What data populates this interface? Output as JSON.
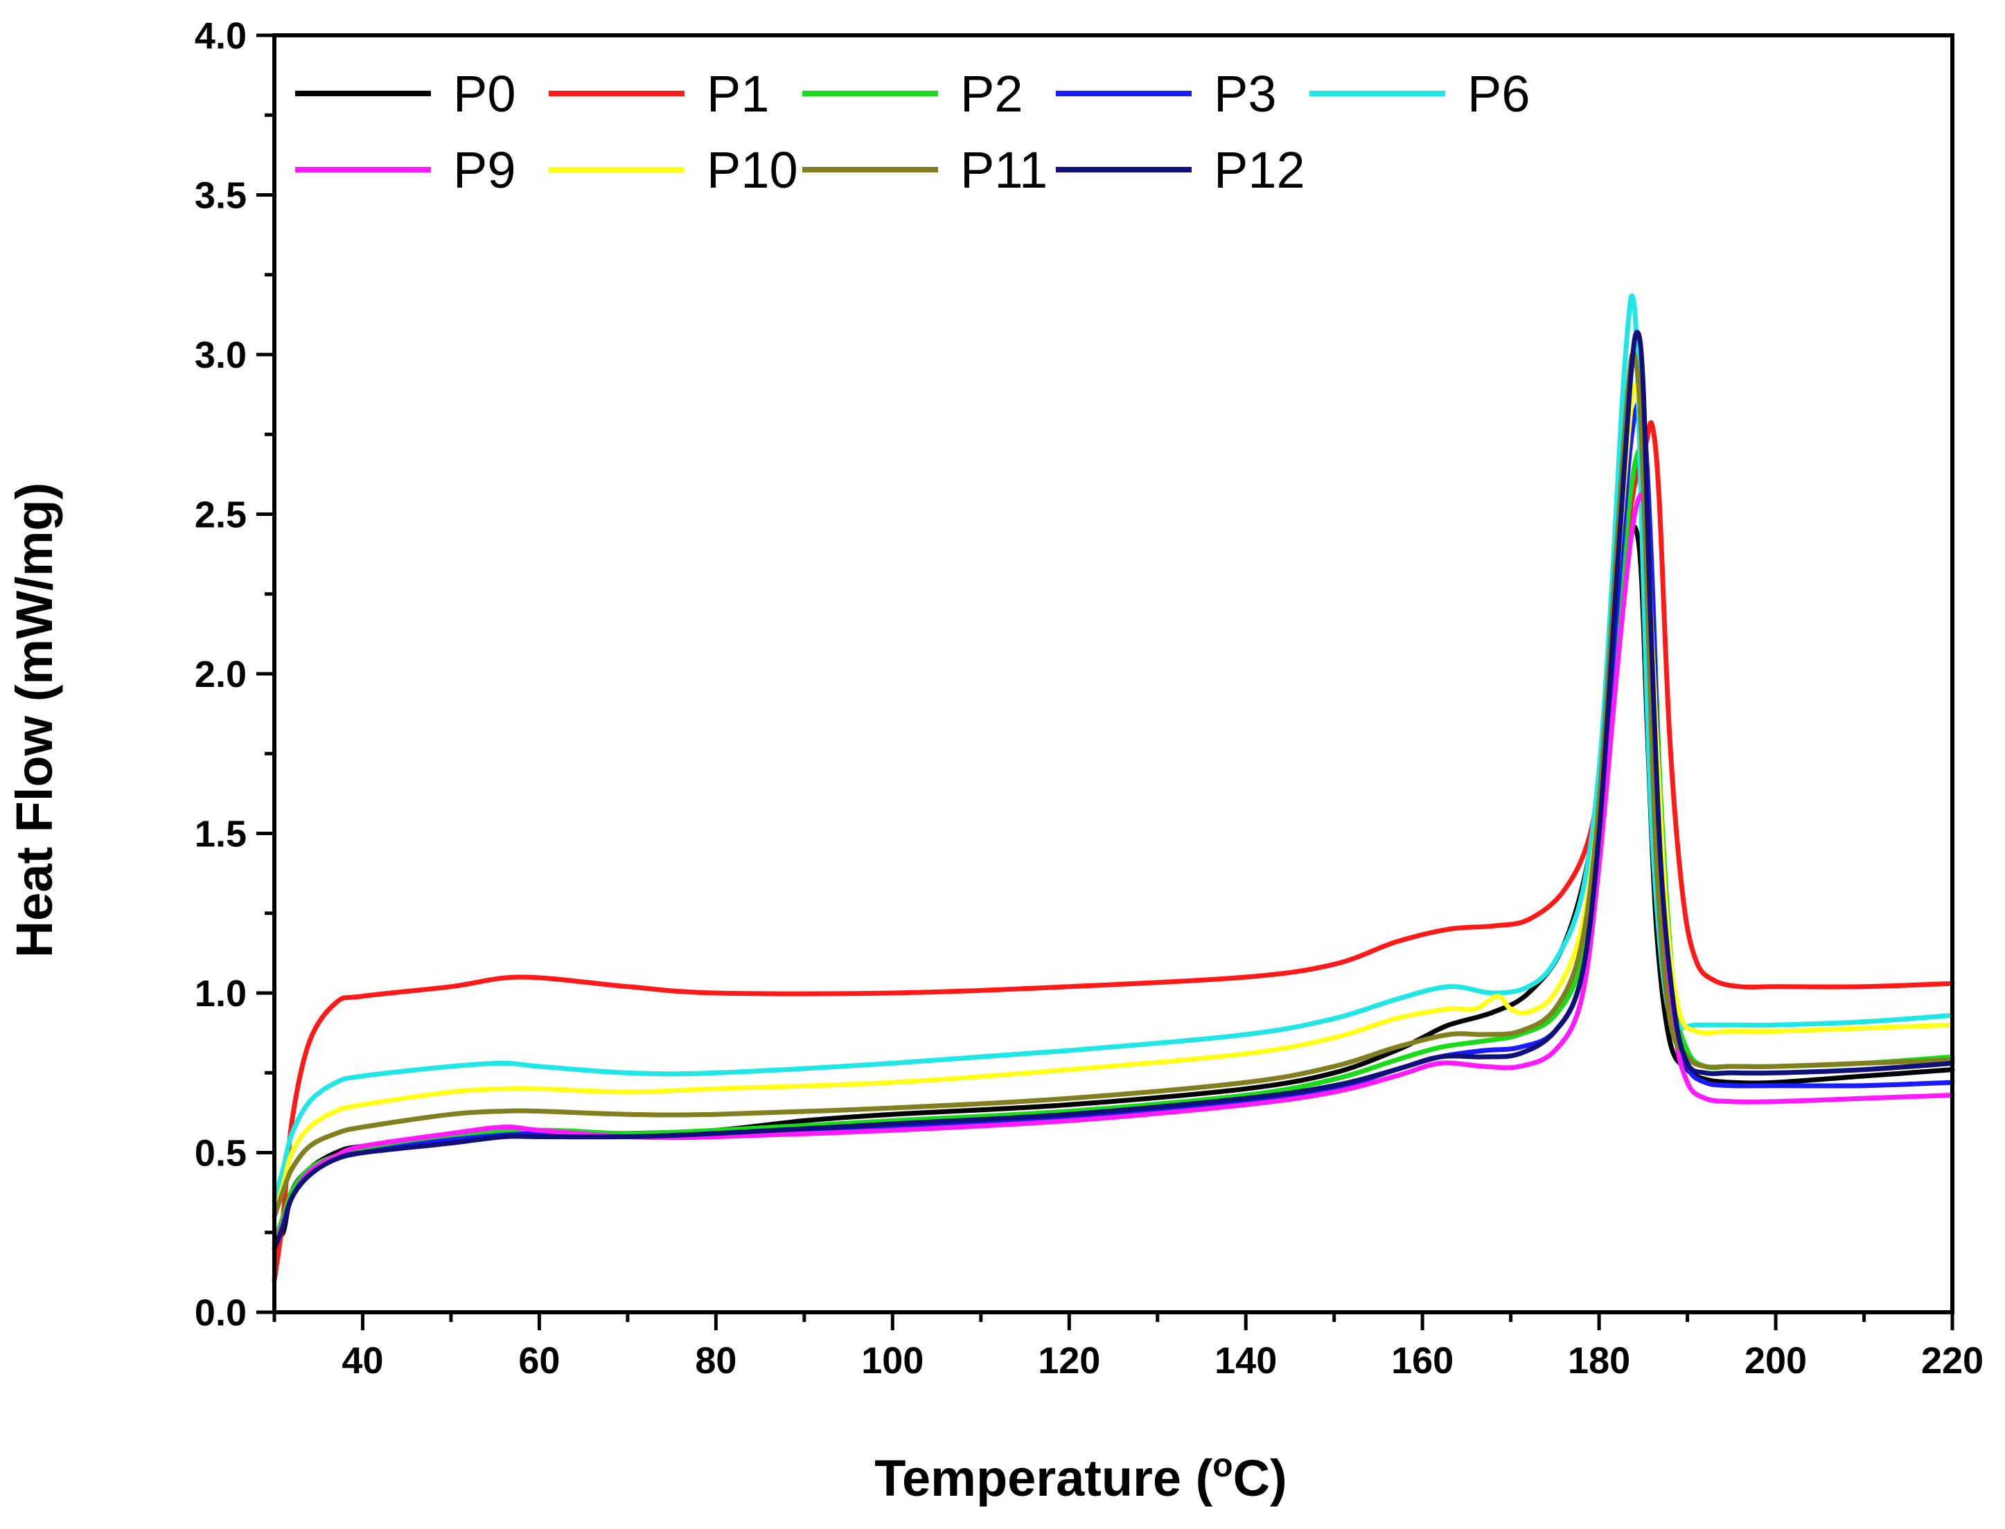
{
  "chart_data": {
    "type": "line",
    "title": "",
    "xlabel": "Temperature (",
    "xlabel_sup": "o",
    "xlabel_end": "C)",
    "ylabel": "Heat Flow (mW/mg)",
    "xlim": [
      30,
      220
    ],
    "ylim": [
      0,
      4
    ],
    "x_ticks": [
      40,
      60,
      80,
      100,
      120,
      140,
      160,
      180,
      200,
      220
    ],
    "x_tick_labels": [
      "40",
      "60",
      "80",
      "100",
      "120",
      "140",
      "160",
      "180",
      "200",
      "220"
    ],
    "y_ticks": [
      0,
      0.5,
      1,
      1.5,
      2,
      2.5,
      3,
      3.5,
      4
    ],
    "y_tick_labels": [
      "0.0",
      "0.5",
      "1.0",
      "1.5",
      "2.0",
      "2.5",
      "3.0",
      "3.5",
      "4.0"
    ],
    "grid": false,
    "legend_position": "top-left",
    "series": [
      {
        "name": "P0",
        "color": "#000000",
        "x": [
          30,
          31,
          32,
          34,
          37,
          40,
          50,
          60,
          70,
          80,
          90,
          100,
          120,
          140,
          150,
          157,
          160,
          163,
          168,
          172,
          176,
          179,
          181,
          182.5,
          183.5,
          184.2,
          184.8,
          185.5,
          186.5,
          188,
          190,
          192,
          195,
          200,
          210,
          220
        ],
        "y": [
          0.25,
          0.25,
          0.38,
          0.45,
          0.5,
          0.52,
          0.54,
          0.56,
          0.56,
          0.57,
          0.6,
          0.62,
          0.65,
          0.7,
          0.75,
          0.82,
          0.86,
          0.9,
          0.94,
          1.0,
          1.15,
          1.45,
          1.9,
          2.3,
          2.43,
          2.45,
          2.3,
          1.8,
          1.2,
          0.85,
          0.76,
          0.73,
          0.72,
          0.72,
          0.74,
          0.76
        ]
      },
      {
        "name": "P1",
        "color": "#ff1a1a",
        "x": [
          30,
          31,
          32,
          34,
          37,
          40,
          50,
          58,
          70,
          80,
          100,
          120,
          140,
          150,
          157,
          163,
          168,
          172,
          176,
          179,
          181,
          182.5,
          183.5,
          184.5,
          185.3,
          186,
          186.8,
          188,
          189.5,
          191,
          193,
          196,
          200,
          210,
          220
        ],
        "y": [
          0.1,
          0.3,
          0.6,
          0.85,
          0.97,
          0.99,
          1.02,
          1.05,
          1.02,
          1.0,
          1.0,
          1.02,
          1.05,
          1.09,
          1.16,
          1.2,
          1.21,
          1.23,
          1.32,
          1.5,
          1.85,
          2.2,
          2.5,
          2.65,
          2.72,
          2.78,
          2.55,
          1.8,
          1.3,
          1.1,
          1.04,
          1.02,
          1.02,
          1.02,
          1.03
        ]
      },
      {
        "name": "P2",
        "color": "#1adb1a",
        "x": [
          30,
          31,
          32,
          34,
          37,
          40,
          50,
          60,
          70,
          80,
          100,
          120,
          140,
          150,
          157,
          162,
          167,
          171,
          175,
          178,
          180,
          182,
          183.5,
          184.5,
          185.2,
          186,
          187,
          188.5,
          190,
          192,
          195,
          200,
          210,
          220
        ],
        "y": [
          0.22,
          0.3,
          0.38,
          0.45,
          0.49,
          0.51,
          0.55,
          0.57,
          0.56,
          0.57,
          0.6,
          0.63,
          0.68,
          0.73,
          0.79,
          0.83,
          0.85,
          0.87,
          0.93,
          1.1,
          1.5,
          2.1,
          2.55,
          2.7,
          2.65,
          2.3,
          1.6,
          1.0,
          0.82,
          0.77,
          0.77,
          0.77,
          0.78,
          0.8
        ]
      },
      {
        "name": "P3",
        "color": "#1a1aff",
        "x": [
          30,
          31,
          32,
          34,
          37,
          40,
          50,
          60,
          70,
          80,
          100,
          120,
          140,
          150,
          157,
          162,
          167,
          171,
          175,
          178,
          180,
          182,
          183.5,
          184.5,
          185.2,
          186,
          187,
          188.5,
          190,
          192,
          195,
          200,
          210,
          220
        ],
        "y": [
          0.2,
          0.28,
          0.36,
          0.44,
          0.48,
          0.5,
          0.54,
          0.56,
          0.55,
          0.55,
          0.58,
          0.61,
          0.66,
          0.7,
          0.76,
          0.8,
          0.82,
          0.83,
          0.88,
          1.05,
          1.5,
          2.2,
          2.7,
          2.85,
          2.75,
          2.3,
          1.5,
          0.95,
          0.77,
          0.72,
          0.71,
          0.71,
          0.71,
          0.72
        ]
      },
      {
        "name": "P6",
        "color": "#20e6e6",
        "x": [
          30,
          31,
          32,
          34,
          37,
          40,
          50,
          56,
          60,
          70,
          80,
          100,
          120,
          140,
          150,
          157,
          163,
          168,
          172,
          175,
          178,
          180,
          181.5,
          182.5,
          183.3,
          183.8,
          184.3,
          185,
          186,
          187.5,
          189,
          191,
          195,
          200,
          210,
          220
        ],
        "y": [
          0.35,
          0.45,
          0.56,
          0.66,
          0.72,
          0.74,
          0.77,
          0.78,
          0.77,
          0.75,
          0.75,
          0.78,
          0.82,
          0.87,
          0.92,
          0.98,
          1.02,
          1.0,
          1.02,
          1.1,
          1.3,
          1.7,
          2.3,
          2.8,
          3.1,
          3.18,
          3.0,
          2.3,
          1.5,
          1.0,
          0.9,
          0.9,
          0.9,
          0.9,
          0.91,
          0.93
        ]
      },
      {
        "name": "P9",
        "color": "#ff1aff",
        "x": [
          30,
          31,
          32,
          34,
          37,
          40,
          50,
          56,
          60,
          70,
          80,
          100,
          120,
          140,
          150,
          157,
          162,
          167,
          171,
          175,
          178,
          180,
          182,
          183.5,
          184.5,
          185.2,
          186,
          187,
          188.5,
          190,
          192,
          195,
          200,
          210,
          220
        ],
        "y": [
          0.2,
          0.28,
          0.36,
          0.44,
          0.49,
          0.52,
          0.56,
          0.58,
          0.57,
          0.55,
          0.55,
          0.57,
          0.6,
          0.65,
          0.69,
          0.74,
          0.78,
          0.77,
          0.77,
          0.82,
          0.98,
          1.4,
          2.0,
          2.4,
          2.55,
          2.5,
          2.1,
          1.4,
          0.9,
          0.72,
          0.67,
          0.66,
          0.66,
          0.67,
          0.68
        ]
      },
      {
        "name": "P10",
        "color": "#ffff1a",
        "x": [
          30,
          31,
          32,
          34,
          37,
          40,
          50,
          56,
          60,
          70,
          80,
          100,
          120,
          140,
          150,
          157,
          163,
          166,
          168.5,
          170,
          172,
          175,
          178,
          180,
          182,
          183.5,
          184.2,
          185,
          186,
          187.5,
          189,
          191,
          195,
          200,
          210,
          220
        ],
        "y": [
          0.3,
          0.4,
          0.5,
          0.58,
          0.63,
          0.65,
          0.69,
          0.7,
          0.7,
          0.69,
          0.7,
          0.72,
          0.76,
          0.81,
          0.86,
          0.92,
          0.95,
          0.95,
          0.99,
          0.95,
          0.94,
          1.0,
          1.2,
          1.6,
          2.3,
          2.8,
          2.9,
          2.7,
          2.1,
          1.3,
          0.95,
          0.88,
          0.88,
          0.88,
          0.89,
          0.9
        ]
      },
      {
        "name": "P11",
        "color": "#808020",
        "x": [
          30,
          31,
          32,
          34,
          37,
          40,
          50,
          56,
          60,
          70,
          80,
          100,
          120,
          140,
          150,
          157,
          163,
          167,
          171,
          175,
          178,
          180,
          182,
          183.3,
          184,
          184.7,
          185.5,
          186.5,
          188,
          190,
          192,
          195,
          200,
          210,
          220
        ],
        "y": [
          0.3,
          0.38,
          0.45,
          0.52,
          0.56,
          0.58,
          0.62,
          0.63,
          0.63,
          0.62,
          0.62,
          0.64,
          0.67,
          0.72,
          0.77,
          0.83,
          0.87,
          0.87,
          0.88,
          0.95,
          1.15,
          1.6,
          2.4,
          2.9,
          3.0,
          2.8,
          2.2,
          1.4,
          0.92,
          0.8,
          0.77,
          0.77,
          0.77,
          0.78,
          0.79
        ]
      },
      {
        "name": "P12",
        "color": "#10107a",
        "x": [
          30,
          31,
          32,
          34,
          37,
          40,
          50,
          56,
          60,
          70,
          80,
          100,
          120,
          140,
          150,
          157,
          162,
          167,
          171,
          175,
          178,
          180,
          182,
          183.5,
          184.3,
          185,
          185.8,
          187,
          188.5,
          190,
          192,
          195,
          200,
          210,
          220
        ],
        "y": [
          0.2,
          0.27,
          0.36,
          0.43,
          0.48,
          0.5,
          0.53,
          0.55,
          0.55,
          0.55,
          0.56,
          0.59,
          0.62,
          0.67,
          0.71,
          0.76,
          0.8,
          0.8,
          0.81,
          0.88,
          1.05,
          1.5,
          2.3,
          2.9,
          3.07,
          2.9,
          2.2,
          1.4,
          0.95,
          0.78,
          0.75,
          0.75,
          0.75,
          0.76,
          0.78
        ]
      }
    ]
  }
}
